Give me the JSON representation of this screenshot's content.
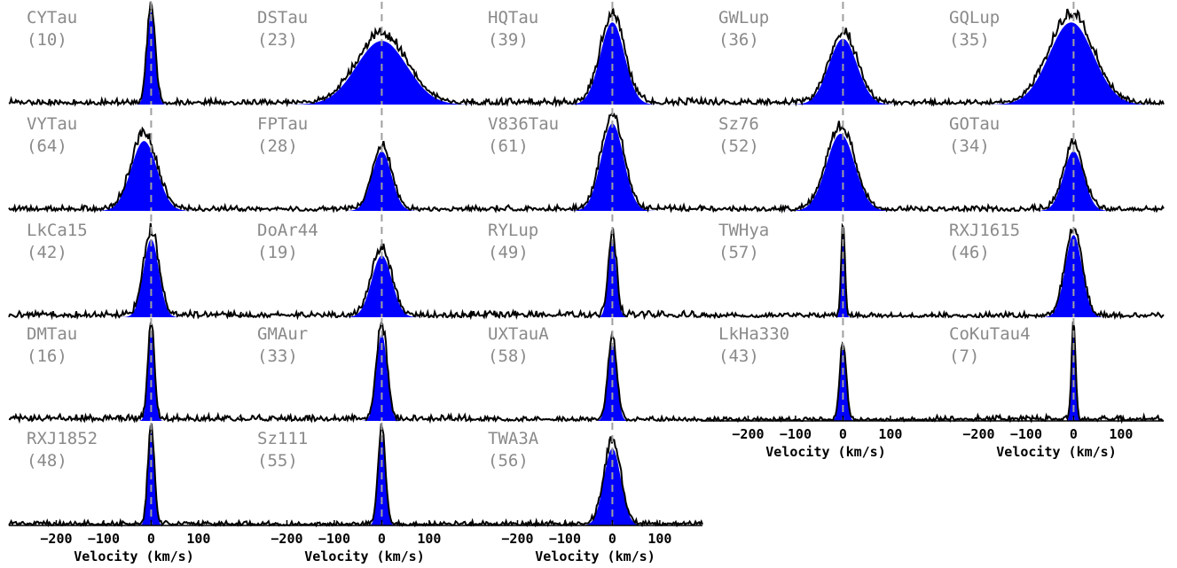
{
  "chart_data": {
    "type": "line",
    "layout": "5 columns x 5 rows; no panels in row 5, columns 4-5",
    "xlabel": "Velocity (km/s)",
    "x_ticks": [
      -200,
      -100,
      0,
      100
    ],
    "xlim": [
      -300,
      190
    ],
    "colors": {
      "spectrum": "#000000",
      "fit_fill": "#0000ff",
      "center_line": "#a0a0a0",
      "star_label": "#8a8a8a"
    },
    "panels": [
      {
        "name": "CYTau",
        "number": "(10)",
        "center": 0,
        "fwhm": 20,
        "amplitude": 0.9
      },
      {
        "name": "DSTau",
        "number": "(23)",
        "center": 0,
        "fwhm": 125,
        "amplitude": 0.62
      },
      {
        "name": "HQTau",
        "number": "(39)",
        "center": 0,
        "fwhm": 60,
        "amplitude": 0.8
      },
      {
        "name": "GWLup",
        "number": "(36)",
        "center": 0,
        "fwhm": 70,
        "amplitude": 0.64
      },
      {
        "name": "GQLup",
        "number": "(35)",
        "center": -5,
        "fwhm": 110,
        "amplitude": 0.8
      },
      {
        "name": "VYTau",
        "number": "(64)",
        "center": -15,
        "fwhm": 64,
        "amplitude": 0.68
      },
      {
        "name": "FPTau",
        "number": "(28)",
        "center": 0,
        "fwhm": 48,
        "amplitude": 0.58
      },
      {
        "name": "V836Tau",
        "number": "(61)",
        "center": 0,
        "fwhm": 56,
        "amplitude": 0.85
      },
      {
        "name": "Sz76",
        "number": "(52)",
        "center": -5,
        "fwhm": 70,
        "amplitude": 0.75
      },
      {
        "name": "GOTau",
        "number": "(34)",
        "center": 0,
        "fwhm": 50,
        "amplitude": 0.58
      },
      {
        "name": "LkCa15",
        "number": "(42)",
        "center": 0,
        "fwhm": 38,
        "amplitude": 0.76
      },
      {
        "name": "DoAr44",
        "number": "(19)",
        "center": 0,
        "fwhm": 50,
        "amplitude": 0.6
      },
      {
        "name": "RYLup",
        "number": "(49)",
        "center": 0,
        "fwhm": 20,
        "amplitude": 0.75
      },
      {
        "name": "TWHya",
        "number": "(57)",
        "center": 0,
        "fwhm": 9,
        "amplitude": 0.85
      },
      {
        "name": "RXJ1615",
        "number": "(46)",
        "center": 0,
        "fwhm": 42,
        "amplitude": 0.8
      },
      {
        "name": "DMTau",
        "number": "(16)",
        "center": 0,
        "fwhm": 16,
        "amplitude": 0.88
      },
      {
        "name": "GMAur",
        "number": "(33)",
        "center": 0,
        "fwhm": 26,
        "amplitude": 0.85
      },
      {
        "name": "UXTauA",
        "number": "(58)",
        "center": 0,
        "fwhm": 22,
        "amplitude": 0.75
      },
      {
        "name": "LkHa330",
        "number": "(43)",
        "center": 0,
        "fwhm": 16,
        "amplitude": 0.7
      },
      {
        "name": "CoKuTau4",
        "number": "(7)",
        "center": 0,
        "fwhm": 10,
        "amplitude": 0.88
      },
      {
        "name": "RXJ1852",
        "number": "(48)",
        "center": 0,
        "fwhm": 16,
        "amplitude": 0.9
      },
      {
        "name": "Sz111",
        "number": "(55)",
        "center": 0,
        "fwhm": 18,
        "amplitude": 0.88
      },
      {
        "name": "TWA3A",
        "number": "(56)",
        "center": 0,
        "fwhm": 42,
        "amplitude": 0.75
      }
    ]
  }
}
